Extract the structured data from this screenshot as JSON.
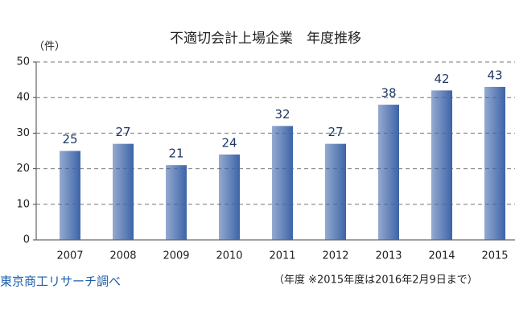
{
  "chart_data": {
    "type": "bar",
    "title": "不適切会計上場企業　年度推移",
    "y_label": "（件）",
    "categories": [
      "2007",
      "2008",
      "2009",
      "2010",
      "2011",
      "2012",
      "2013",
      "2014",
      "2015"
    ],
    "values": [
      25,
      27,
      21,
      24,
      32,
      27,
      38,
      42,
      43
    ],
    "color": "#3d64a8",
    "ylim": [
      0,
      50
    ],
    "yticks": [
      0,
      10,
      20,
      30,
      40,
      50
    ],
    "grid": true,
    "source": "東京商工リサーチ調べ",
    "note": "（年度 ※2015年度は2016年2月9日まで）"
  }
}
